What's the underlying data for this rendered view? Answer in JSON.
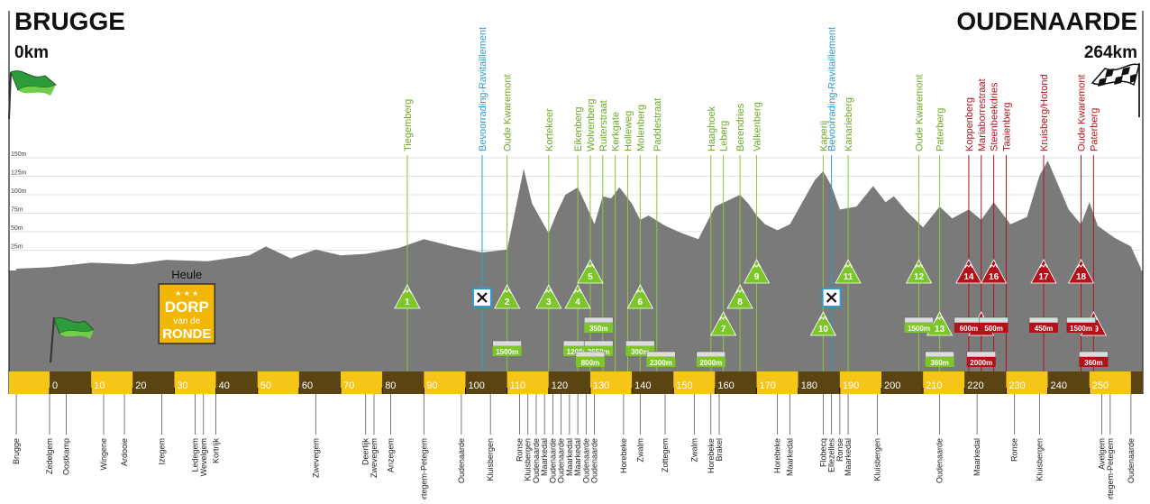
{
  "chart_data": {
    "type": "area",
    "start": {
      "city": "BRUGGE",
      "distance": "0km"
    },
    "finish": {
      "city": "OUDENAARDE",
      "distance": "264km"
    },
    "x_ticks": [
      0,
      10,
      20,
      30,
      40,
      50,
      60,
      70,
      80,
      90,
      100,
      110,
      120,
      130,
      140,
      150,
      160,
      170,
      180,
      190,
      200,
      210,
      220,
      230,
      240,
      250
    ],
    "y_ticks": [
      "150m",
      "125m",
      "100m",
      "75m",
      "50m",
      "25m"
    ],
    "xlim": [
      -8,
      264
    ],
    "ylim": [
      0,
      160
    ],
    "profile": [
      [
        -8,
        0
      ],
      [
        0,
        2
      ],
      [
        10,
        8
      ],
      [
        20,
        6
      ],
      [
        28,
        12
      ],
      [
        38,
        10
      ],
      [
        48,
        18
      ],
      [
        52,
        30
      ],
      [
        58,
        14
      ],
      [
        64,
        26
      ],
      [
        70,
        18
      ],
      [
        76,
        20
      ],
      [
        84,
        28
      ],
      [
        90,
        40
      ],
      [
        97,
        30
      ],
      [
        104,
        22
      ],
      [
        110,
        26
      ],
      [
        112,
        80
      ],
      [
        114,
        135
      ],
      [
        116,
        88
      ],
      [
        120,
        48
      ],
      [
        122,
        76
      ],
      [
        124,
        100
      ],
      [
        127,
        110
      ],
      [
        129,
        86
      ],
      [
        131,
        60
      ],
      [
        133,
        98
      ],
      [
        135,
        95
      ],
      [
        137,
        110
      ],
      [
        140,
        88
      ],
      [
        142,
        66
      ],
      [
        144,
        72
      ],
      [
        148,
        58
      ],
      [
        152,
        48
      ],
      [
        156,
        40
      ],
      [
        160,
        84
      ],
      [
        163,
        92
      ],
      [
        166,
        100
      ],
      [
        168,
        88
      ],
      [
        170,
        72
      ],
      [
        172,
        60
      ],
      [
        175,
        52
      ],
      [
        178,
        60
      ],
      [
        182,
        100
      ],
      [
        184,
        120
      ],
      [
        186,
        132
      ],
      [
        188,
        112
      ],
      [
        190,
        80
      ],
      [
        194,
        84
      ],
      [
        198,
        112
      ],
      [
        201,
        90
      ],
      [
        203,
        98
      ],
      [
        206,
        78
      ],
      [
        210,
        56
      ],
      [
        214,
        84
      ],
      [
        217,
        68
      ],
      [
        221,
        80
      ],
      [
        224,
        66
      ],
      [
        227,
        90
      ],
      [
        231,
        60
      ],
      [
        235,
        70
      ],
      [
        238,
        126
      ],
      [
        240,
        146
      ],
      [
        242,
        120
      ],
      [
        245,
        80
      ],
      [
        248,
        60
      ],
      [
        250,
        90
      ],
      [
        252,
        58
      ],
      [
        256,
        42
      ],
      [
        260,
        30
      ],
      [
        264,
        0
      ]
    ],
    "labels_green": [
      {
        "x": 86,
        "name": "Tiegemberg"
      },
      {
        "x": 110,
        "name": "Oude Kwaremont"
      },
      {
        "x": 120,
        "name": "Kortekeer"
      },
      {
        "x": 127,
        "name": "Eikenberg"
      },
      {
        "x": 130,
        "name": "Wolvenberg"
      },
      {
        "x": 133,
        "name": "Ruiterstraat"
      },
      {
        "x": 136,
        "name": "Kerkgate"
      },
      {
        "x": 139,
        "name": "Holleweg"
      },
      {
        "x": 142,
        "name": "Molenberg"
      },
      {
        "x": 146,
        "name": "Paddestraat"
      },
      {
        "x": 159,
        "name": "Haaghoek"
      },
      {
        "x": 162,
        "name": "Leberg"
      },
      {
        "x": 166,
        "name": "Berendries"
      },
      {
        "x": 170,
        "name": "Valkenberg"
      },
      {
        "x": 186,
        "name": "Kaperij"
      },
      {
        "x": 192,
        "name": "Kanarieberg"
      },
      {
        "x": 209,
        "name": "Oude Kwaremont"
      },
      {
        "x": 214,
        "name": "Paterberg"
      }
    ],
    "labels_blue": [
      {
        "x": 104,
        "name": "Bevoorrading-Ravitaillement"
      },
      {
        "x": 188,
        "name": "Bevoorrading-Ravitaillement"
      }
    ],
    "labels_red": [
      {
        "x": 221,
        "name": "Koppenberg"
      },
      {
        "x": 224,
        "name": "Mariaborrestraat"
      },
      {
        "x": 227,
        "name": "Steenbeekdries"
      },
      {
        "x": 230,
        "name": "Taaienberg"
      },
      {
        "x": 239,
        "name": "Kruisberg/Hotond"
      },
      {
        "x": 248,
        "name": "Oude Kwaremont"
      },
      {
        "x": 251,
        "name": "Paterberg"
      }
    ],
    "climbs": [
      {
        "n": "1",
        "x": 86,
        "level": 1,
        "color": "green"
      },
      {
        "n": "2",
        "x": 110,
        "level": 1,
        "color": "green"
      },
      {
        "n": "3",
        "x": 120,
        "level": 1,
        "color": "green"
      },
      {
        "n": "4",
        "x": 127,
        "level": 1,
        "color": "green"
      },
      {
        "n": "5",
        "x": 130,
        "level": 0,
        "color": "green"
      },
      {
        "n": "6",
        "x": 142,
        "level": 1,
        "color": "green"
      },
      {
        "n": "7",
        "x": 162,
        "level": 2,
        "color": "green"
      },
      {
        "n": "8",
        "x": 166,
        "level": 1,
        "color": "green"
      },
      {
        "n": "9",
        "x": 170,
        "level": 0,
        "color": "green"
      },
      {
        "n": "10",
        "x": 186,
        "level": 2,
        "color": "green"
      },
      {
        "n": "11",
        "x": 192,
        "level": 0,
        "color": "green"
      },
      {
        "n": "12",
        "x": 209,
        "level": 0,
        "color": "green"
      },
      {
        "n": "13",
        "x": 214,
        "level": 2,
        "color": "green"
      },
      {
        "n": "14",
        "x": 221,
        "level": 0,
        "color": "red"
      },
      {
        "n": "15",
        "x": 224,
        "level": 2,
        "color": "red"
      },
      {
        "n": "16",
        "x": 227,
        "level": 0,
        "color": "red"
      },
      {
        "n": "17",
        "x": 239,
        "level": 0,
        "color": "red"
      },
      {
        "n": "18",
        "x": 248,
        "level": 0,
        "color": "red"
      },
      {
        "n": "19",
        "x": 251,
        "level": 2,
        "color": "red"
      }
    ],
    "cobbles": [
      {
        "text": "1500m",
        "x": 110,
        "level": 2,
        "color": "green"
      },
      {
        "text": "1200m",
        "x": 127,
        "level": 2,
        "color": "green"
      },
      {
        "text": "350m",
        "x": 132,
        "level": 1,
        "color": "green"
      },
      {
        "text": "2650m",
        "x": 132,
        "level": 2,
        "color": "green"
      },
      {
        "text": "800m",
        "x": 130,
        "level": 3,
        "color": "green"
      },
      {
        "text": "300m",
        "x": 142,
        "level": 2,
        "color": "green"
      },
      {
        "text": "2300m",
        "x": 147,
        "level": 3,
        "color": "green"
      },
      {
        "text": "2000m",
        "x": 159,
        "level": 3,
        "color": "green"
      },
      {
        "text": "1500m",
        "x": 209,
        "level": 1,
        "color": "green"
      },
      {
        "text": "360m",
        "x": 214,
        "level": 3,
        "color": "green"
      },
      {
        "text": "600m",
        "x": 221,
        "level": 1,
        "color": "red"
      },
      {
        "text": "2000m",
        "x": 224,
        "level": 3,
        "color": "red"
      },
      {
        "text": "500m",
        "x": 227,
        "level": 1,
        "color": "red"
      },
      {
        "text": "450m",
        "x": 239,
        "level": 1,
        "color": "red"
      },
      {
        "text": "1500m",
        "x": 248,
        "level": 1,
        "color": "red"
      },
      {
        "text": "360m",
        "x": 251,
        "level": 3,
        "color": "red"
      }
    ],
    "feed_zones": [
      {
        "x": 104
      },
      {
        "x": 188
      }
    ],
    "towns": [
      {
        "x": -8,
        "name": "Brugge"
      },
      {
        "x": 0,
        "name": "Zedelgem"
      },
      {
        "x": 4,
        "name": "Oostkamp"
      },
      {
        "x": 13,
        "name": "Wingene"
      },
      {
        "x": 18,
        "name": "Ardooie"
      },
      {
        "x": 27,
        "name": "Izegem"
      },
      {
        "x": 35,
        "name": "Ledegem"
      },
      {
        "x": 37,
        "name": "Wevelgem"
      },
      {
        "x": 40,
        "name": "Kortrijk"
      },
      {
        "x": 64,
        "name": "Zwevegem"
      },
      {
        "x": 76,
        "name": "Deerlijk"
      },
      {
        "x": 78,
        "name": "Zwevegem"
      },
      {
        "x": 82,
        "name": "Anzegem"
      },
      {
        "x": 90,
        "name": "Wortegem-Petegem"
      },
      {
        "x": 99,
        "name": "Oudenaarde"
      },
      {
        "x": 106,
        "name": "Kluisbergen"
      },
      {
        "x": 113,
        "name": "Ronse"
      },
      {
        "x": 115,
        "name": "Kluisbergen"
      },
      {
        "x": 117,
        "name": "Oudenaarde"
      },
      {
        "x": 119,
        "name": "Maarkedal"
      },
      {
        "x": 121,
        "name": "Oudenaarde"
      },
      {
        "x": 123,
        "name": "Oudenaarde"
      },
      {
        "x": 125,
        "name": "Maarkedal"
      },
      {
        "x": 127,
        "name": "Maarkedal"
      },
      {
        "x": 129,
        "name": "Oudenaarde"
      },
      {
        "x": 131,
        "name": "Oudenaarde"
      },
      {
        "x": 138,
        "name": "Horebeke"
      },
      {
        "x": 142,
        "name": "Zwalm"
      },
      {
        "x": 148,
        "name": "Zottegem"
      },
      {
        "x": 155,
        "name": "Zwalm"
      },
      {
        "x": 159,
        "name": "Horebeke"
      },
      {
        "x": 161,
        "name": "Brakel"
      },
      {
        "x": 175,
        "name": "Horebeke"
      },
      {
        "x": 178,
        "name": "Maarkedal"
      },
      {
        "x": 186,
        "name": "Flobecq"
      },
      {
        "x": 188,
        "name": "Ellezelles"
      },
      {
        "x": 190,
        "name": "Ronse"
      },
      {
        "x": 192,
        "name": "Maarkedal"
      },
      {
        "x": 199,
        "name": "Kluisbergen"
      },
      {
        "x": 214,
        "name": "Oudenaarde"
      },
      {
        "x": 223,
        "name": "Maarkedal"
      },
      {
        "x": 232,
        "name": "Ronse"
      },
      {
        "x": 238,
        "name": "Kluisbergen"
      },
      {
        "x": 253,
        "name": "Avelgem"
      },
      {
        "x": 255,
        "name": "Wortegem-Petegem"
      },
      {
        "x": 260,
        "name": "Oudenaarde"
      }
    ],
    "village": {
      "name": "Heule",
      "x": 33,
      "badge_stars": "★ ★ ★",
      "badge_line1": "DORP",
      "badge_line2": "van de",
      "badge_line3": "RONDE"
    },
    "colors": {
      "profile": "#7a7a7a",
      "sky": "#ffffff",
      "band_yellow": "#f5c518",
      "band_brown": "#5a4412",
      "green": "#7cc62a",
      "green_line": "#8cc63f",
      "blue": "#2a9dcf",
      "red": "#b3121a",
      "badge": "#f2b705"
    }
  }
}
